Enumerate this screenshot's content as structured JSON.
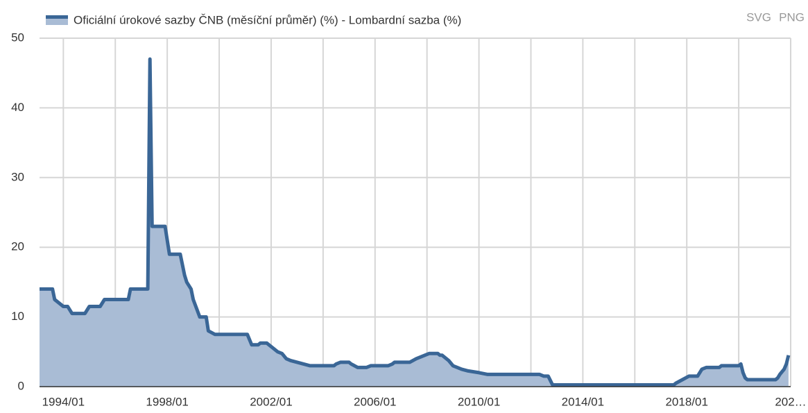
{
  "chart_data": {
    "type": "area",
    "title": "Oficiální úrokové sazby ČNB (měsíční průměr) (%) - Lombardní sazba (%)",
    "export": [
      "SVG",
      "PNG"
    ],
    "x": [
      "1993/02",
      "1993/08",
      "1993/09",
      "1994/01",
      "1994/03",
      "1994/05",
      "1994/11",
      "1995/01",
      "1995/06",
      "1995/08",
      "1996/07",
      "1996/08",
      "1997/04",
      "1997/05",
      "1997/06",
      "1997/12",
      "1998/02",
      "1998/07",
      "1998/09",
      "1998/10",
      "1998/12",
      "1999/01",
      "1999/04",
      "1999/07",
      "1999/08",
      "1999/11",
      "2001/02",
      "2001/04",
      "2001/07",
      "2001/08",
      "2001/11",
      "2001/12",
      "2002/02",
      "2002/04",
      "2002/06",
      "2002/08",
      "2002/10",
      "2003/01",
      "2003/07",
      "2004/06",
      "2004/07",
      "2004/09",
      "2005/01",
      "2005/02",
      "2005/05",
      "2005/09",
      "2005/11",
      "2006/07",
      "2006/09",
      "2006/10",
      "2007/05",
      "2007/08",
      "2007/10",
      "2007/12",
      "2008/02",
      "2008/06",
      "2008/07",
      "2008/08",
      "2008/11",
      "2009/01",
      "2009/03",
      "2009/05",
      "2009/08",
      "2010/01",
      "2010/05",
      "2012/05",
      "2012/07",
      "2012/09",
      "2012/11",
      "2017/07",
      "2017/08",
      "2017/11",
      "2018/02",
      "2018/06",
      "2018/07",
      "2018/08",
      "2018/10",
      "2019/04",
      "2019/05",
      "2020/01",
      "2020/02",
      "2020/03",
      "2020/04",
      "2020/05",
      "2021/06",
      "2021/07",
      "2021/08",
      "2021/10",
      "2021/11",
      "2021/12"
    ],
    "series": [
      {
        "name": "Oficiální úrokové sazby ČNB (měsíční průměr) (%) - Lombardní sazba (%)",
        "color": "#3a6696",
        "fill": "#a9bcd5",
        "values": [
          14,
          14,
          12.5,
          11.5,
          11.5,
          10.5,
          10.5,
          11.5,
          11.5,
          12.5,
          12.5,
          14,
          14,
          47,
          23,
          23,
          19,
          19,
          16,
          15,
          14,
          12.5,
          10,
          10,
          8,
          7.5,
          7.5,
          6,
          6,
          6.25,
          6.25,
          6,
          5.5,
          5,
          4.75,
          4,
          3.75,
          3.5,
          3,
          3,
          3.25,
          3.5,
          3.5,
          3.25,
          2.75,
          2.75,
          3,
          3,
          3.25,
          3.5,
          3.5,
          4,
          4.25,
          4.5,
          4.75,
          4.75,
          4.5,
          4.5,
          3.75,
          3,
          2.75,
          2.5,
          2.25,
          2,
          1.75,
          1.75,
          1.5,
          1.5,
          0.25,
          0.25,
          0.5,
          1,
          1.5,
          1.5,
          2,
          2.5,
          2.75,
          2.75,
          3,
          3,
          3.25,
          2,
          1.25,
          1,
          1,
          1.25,
          1.75,
          2.5,
          3.25,
          4.5
        ]
      }
    ],
    "xlim": [
      "1993/02",
      "2022/01"
    ],
    "xticks": [
      "1994/01",
      "1998/01",
      "2002/01",
      "2006/01",
      "2010/01",
      "2014/01",
      "2018/01",
      {
        "value": "2022/01",
        "label": "202…"
      }
    ],
    "xgrid_minor": [
      "1996/01",
      "2000/01",
      "2004/01",
      "2008/01",
      "2012/01",
      "2016/01",
      "2020/01"
    ],
    "ylim": [
      0,
      50
    ],
    "yticks": [
      0,
      10,
      20,
      30,
      40,
      50
    ],
    "grid": true
  }
}
